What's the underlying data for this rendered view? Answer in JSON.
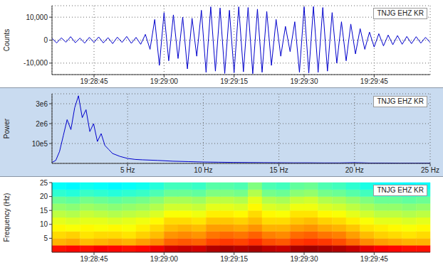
{
  "chart_data": [
    {
      "type": "line",
      "title": "TNJG EHZ KR",
      "ylabel": "Counts",
      "color": "#0000cc",
      "grid": true,
      "xlim": [
        "19:28:36",
        "19:29:57"
      ],
      "xticks": [
        "19:28:45",
        "19:29:00",
        "19:29:15",
        "19:29:30",
        "19:29:45"
      ],
      "ylim": [
        -15000,
        15000
      ],
      "yticks": [
        {
          "value": -10000,
          "label": "-10,000"
        },
        0,
        {
          "value": 10000,
          "label": "10,000"
        }
      ],
      "x": [
        "19:28:36",
        "19:28:37",
        "19:28:38",
        "19:28:39",
        "19:28:40",
        "19:28:41",
        "19:28:42",
        "19:28:43",
        "19:28:44",
        "19:28:45",
        "19:28:46",
        "19:28:47",
        "19:28:48",
        "19:28:49",
        "19:28:50",
        "19:28:51",
        "19:28:52",
        "19:28:53",
        "19:28:54",
        "19:28:55",
        "19:28:56",
        "19:28:57",
        "19:28:58",
        "19:28:59",
        "19:29:00",
        "19:29:01",
        "19:29:02",
        "19:29:03",
        "19:29:04",
        "19:29:05",
        "19:29:06",
        "19:29:07",
        "19:29:08",
        "19:29:09",
        "19:29:10",
        "19:29:11",
        "19:29:12",
        "19:29:13",
        "19:29:14",
        "19:29:15",
        "19:29:16",
        "19:29:17",
        "19:29:18",
        "19:29:19",
        "19:29:20",
        "19:29:21",
        "19:29:22",
        "19:29:23",
        "19:29:24",
        "19:29:25",
        "19:29:26",
        "19:29:27",
        "19:29:28",
        "19:29:29",
        "19:29:30",
        "19:29:31",
        "19:29:32",
        "19:29:33",
        "19:29:34",
        "19:29:35",
        "19:29:36",
        "19:29:37",
        "19:29:38",
        "19:29:39",
        "19:29:40",
        "19:29:41",
        "19:29:42",
        "19:29:43",
        "19:29:44",
        "19:29:45",
        "19:29:46",
        "19:29:47",
        "19:29:48",
        "19:29:49",
        "19:29:50",
        "19:29:51",
        "19:29:52",
        "19:29:53",
        "19:29:54",
        "19:29:55",
        "19:29:56",
        "19:29:57"
      ],
      "values": [
        800,
        -1200,
        1000,
        -900,
        1500,
        -1100,
        900,
        -1300,
        1200,
        -1000,
        1400,
        -1200,
        1100,
        -1500,
        1300,
        -1000,
        1600,
        -1400,
        1200,
        -1800,
        2500,
        -4000,
        9000,
        -11000,
        12000,
        -9000,
        11000,
        -8000,
        10000,
        -12500,
        9500,
        -7000,
        13000,
        -14000,
        14500,
        -13500,
        14000,
        -14500,
        13000,
        -14200,
        14500,
        -13800,
        14200,
        -14600,
        13500,
        -14000,
        12500,
        -11000,
        9000,
        -7000,
        6000,
        -5000,
        8000,
        -14000,
        14500,
        -14300,
        14600,
        -14000,
        14200,
        -13500,
        12000,
        -10000,
        8000,
        -9000,
        7000,
        -6000,
        5000,
        -4000,
        3500,
        -3000,
        2800,
        -2500,
        2200,
        -2000,
        2000,
        -1800,
        1600,
        -1500,
        1500,
        -1300,
        1200,
        -1000
      ]
    },
    {
      "type": "line",
      "title": "TNJG EHZ KR",
      "ylabel": "Power",
      "color": "#0000cc",
      "grid": true,
      "xlim": [
        0,
        25
      ],
      "xticks": [
        {
          "value": 5,
          "label": "5 Hz"
        },
        {
          "value": 10,
          "label": "10 Hz"
        },
        {
          "value": 15,
          "label": "15 Hz"
        },
        {
          "value": 20,
          "label": "20 Hz"
        },
        {
          "value": 25,
          "label": "25 Hz"
        }
      ],
      "ylim": [
        0,
        3500000
      ],
      "yticks": [
        {
          "value": 1000000,
          "label": "10e5"
        },
        {
          "value": 2000000,
          "label": "2e6"
        },
        {
          "value": 3000000,
          "label": "3e6"
        }
      ],
      "x": [
        0,
        0.25,
        0.5,
        0.75,
        1,
        1.25,
        1.5,
        1.75,
        2,
        2.25,
        2.5,
        2.75,
        3,
        3.25,
        3.5,
        3.75,
        4,
        4.5,
        5,
        5.5,
        6,
        7,
        8,
        9,
        10,
        11,
        12,
        13,
        14,
        15,
        16,
        17,
        18,
        19,
        20,
        21,
        22,
        23,
        24,
        25
      ],
      "values": [
        50000,
        150000,
        600000,
        1400000,
        2200000,
        1700000,
        2800000,
        3400000,
        2300000,
        2700000,
        1600000,
        2000000,
        1100000,
        1500000,
        900000,
        700000,
        500000,
        350000,
        250000,
        200000,
        180000,
        150000,
        110000,
        90000,
        70000,
        60000,
        50000,
        45000,
        40000,
        35000,
        30000,
        30000,
        25000,
        25000,
        40000,
        20000,
        20000,
        15000,
        15000,
        15000
      ]
    },
    {
      "type": "heatmap",
      "title": "TNJG EHZ KR",
      "ylabel": "Frequency (Hz)",
      "grid": false,
      "xlim": [
        "19:28:36",
        "19:29:57"
      ],
      "xticks": [
        "19:28:45",
        "19:29:00",
        "19:29:15",
        "19:29:30",
        "19:29:45"
      ],
      "ylim": [
        0,
        25
      ],
      "yticks": [
        5,
        10,
        15,
        20,
        25
      ],
      "zlim": [
        0,
        10
      ],
      "x_edges": [
        "19:28:36",
        "19:28:39",
        "19:28:42",
        "19:28:45",
        "19:28:48",
        "19:28:51",
        "19:28:54",
        "19:28:57",
        "19:29:00",
        "19:29:03",
        "19:29:06",
        "19:29:09",
        "19:29:12",
        "19:29:15",
        "19:29:18",
        "19:29:21",
        "19:29:24",
        "19:29:27",
        "19:29:30",
        "19:29:33",
        "19:29:36",
        "19:29:39",
        "19:29:42",
        "19:29:45",
        "19:29:48",
        "19:29:51",
        "19:29:54",
        "19:29:57"
      ],
      "y_edges": [
        0,
        2.5,
        5,
        7.5,
        10,
        12.5,
        15,
        17.5,
        20,
        22.5,
        25
      ],
      "cells": [
        [
          8.6,
          8.7,
          8.6,
          8.8,
          8.7,
          8.6,
          8.7,
          8.9,
          9.2,
          9.3,
          9.2,
          9.5,
          9.6,
          9.5,
          9.6,
          9.4,
          9.3,
          9.6,
          9.7,
          9.6,
          9.5,
          9.3,
          9.0,
          8.8,
          8.7,
          8.6,
          8.6
        ],
        [
          7.0,
          7.1,
          6.9,
          7.0,
          7.1,
          7.0,
          7.2,
          7.4,
          7.8,
          7.9,
          7.8,
          8.1,
          8.2,
          8.1,
          8.3,
          8.0,
          7.9,
          8.2,
          8.3,
          8.2,
          8.0,
          7.7,
          7.4,
          7.2,
          7.1,
          7.0,
          7.0
        ],
        [
          6.6,
          6.7,
          6.5,
          6.6,
          6.6,
          6.5,
          6.7,
          6.9,
          7.3,
          7.4,
          7.3,
          7.6,
          7.7,
          7.6,
          7.8,
          7.5,
          7.4,
          7.7,
          7.8,
          7.6,
          7.5,
          7.2,
          6.9,
          6.7,
          6.6,
          6.5,
          6.6
        ],
        [
          6.3,
          6.2,
          6.3,
          6.2,
          6.3,
          6.2,
          6.4,
          6.6,
          6.9,
          7.0,
          6.9,
          7.2,
          7.2,
          7.1,
          7.3,
          7.0,
          7.0,
          7.2,
          7.3,
          7.1,
          7.0,
          6.8,
          6.5,
          6.4,
          6.3,
          6.2,
          6.3
        ],
        [
          6.0,
          5.9,
          6.0,
          6.0,
          5.9,
          6.0,
          6.1,
          6.3,
          6.6,
          6.6,
          6.5,
          6.8,
          6.8,
          6.7,
          6.9,
          6.6,
          6.6,
          6.8,
          6.9,
          6.7,
          6.6,
          6.4,
          6.2,
          6.0,
          6.0,
          5.9,
          6.0
        ],
        [
          5.6,
          5.5,
          5.7,
          5.6,
          5.5,
          5.6,
          5.7,
          5.9,
          6.2,
          6.2,
          6.1,
          6.4,
          6.4,
          6.3,
          6.6,
          6.3,
          6.2,
          6.5,
          6.5,
          6.3,
          6.2,
          6.0,
          5.8,
          5.6,
          5.6,
          5.5,
          5.6
        ],
        [
          5.2,
          5.1,
          5.3,
          5.2,
          5.1,
          5.2,
          5.3,
          5.5,
          5.8,
          5.8,
          5.7,
          6.0,
          6.0,
          5.9,
          6.3,
          5.9,
          5.8,
          6.1,
          6.1,
          5.9,
          5.8,
          5.6,
          5.4,
          5.2,
          5.2,
          5.1,
          5.2
        ],
        [
          4.8,
          4.7,
          4.9,
          4.8,
          4.7,
          4.8,
          4.9,
          5.1,
          5.4,
          5.4,
          5.3,
          5.6,
          5.6,
          5.5,
          6.0,
          5.5,
          5.4,
          5.7,
          5.8,
          5.5,
          5.4,
          5.2,
          5.0,
          4.8,
          4.8,
          4.7,
          4.8
        ],
        [
          4.2,
          4.1,
          4.3,
          4.2,
          4.1,
          4.2,
          4.3,
          4.5,
          4.8,
          4.8,
          4.7,
          5.0,
          5.0,
          4.9,
          5.5,
          4.9,
          4.8,
          5.1,
          5.2,
          4.9,
          4.8,
          4.6,
          4.4,
          4.2,
          4.2,
          4.1,
          4.2
        ],
        [
          3.8,
          3.7,
          3.9,
          3.8,
          3.7,
          3.8,
          3.9,
          4.1,
          4.4,
          4.4,
          4.3,
          4.6,
          4.6,
          4.5,
          5.0,
          4.5,
          4.4,
          4.7,
          4.8,
          4.5,
          4.4,
          4.2,
          4.0,
          3.8,
          3.8,
          3.7,
          3.8
        ]
      ]
    }
  ]
}
